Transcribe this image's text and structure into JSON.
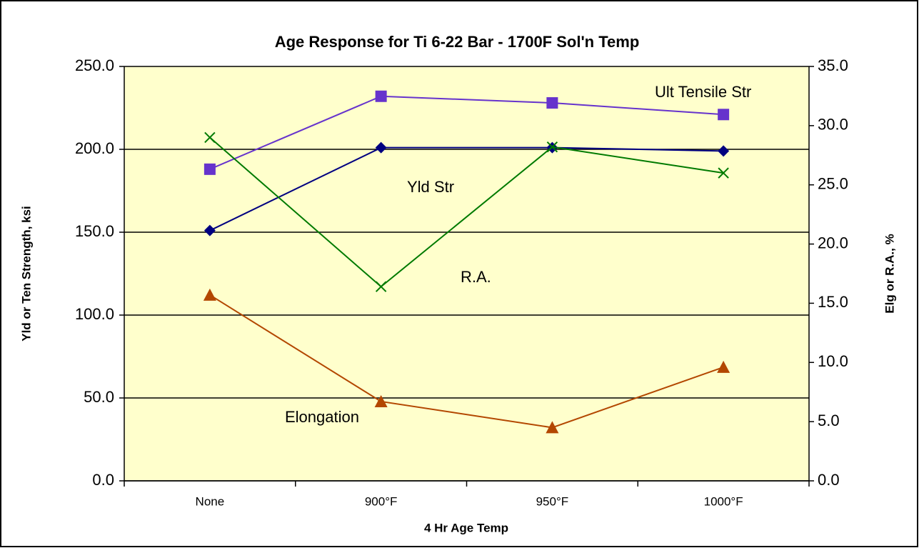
{
  "chart_data": {
    "type": "line",
    "title": "Age Response for Ti 6-22 Bar - 1700F Sol'n Temp",
    "x_label": "4 Hr Age Temp",
    "y_label": "Yld or Ten Strength, ksi",
    "y2_label": "Elg or R.A., %",
    "categories": [
      "None",
      "900°F",
      "950°F",
      "1000°F"
    ],
    "ylim": [
      0,
      250
    ],
    "yticks": [
      {
        "value": 0,
        "label": "0.0"
      },
      {
        "value": 50,
        "label": "50.0"
      },
      {
        "value": 100,
        "label": "100.0"
      },
      {
        "value": 150,
        "label": "150.0"
      },
      {
        "value": 200,
        "label": "200.0"
      },
      {
        "value": 250,
        "label": "250.0"
      }
    ],
    "y2lim": [
      0,
      35
    ],
    "y2ticks": [
      {
        "value": 0,
        "label": "0.0"
      },
      {
        "value": 5,
        "label": "5.0"
      },
      {
        "value": 10,
        "label": "10.0"
      },
      {
        "value": 15,
        "label": "15.0"
      },
      {
        "value": 20,
        "label": "20.0"
      },
      {
        "value": 25,
        "label": "25.0"
      },
      {
        "value": 30,
        "label": "30.0"
      },
      {
        "value": 35,
        "label": "35.0"
      }
    ],
    "grid": true,
    "series": [
      {
        "name": "Yld Str",
        "color": "#000080",
        "marker": "diamond",
        "values": [
          151,
          201,
          201,
          199
        ]
      },
      {
        "name": "Ult Tensile Str",
        "color": "#6633cc",
        "marker": "square",
        "values": [
          188,
          232,
          228,
          221
        ]
      },
      {
        "name": "R.A.",
        "color": "#007a00",
        "marker": "x",
        "axis": "y2",
        "values": [
          29.0,
          16.4,
          28.2,
          26.0
        ]
      },
      {
        "name": "Elongation",
        "color": "#b34700",
        "marker": "triangle",
        "axis": "y2",
        "values": [
          15.7,
          6.7,
          4.5,
          9.6
        ]
      }
    ]
  }
}
